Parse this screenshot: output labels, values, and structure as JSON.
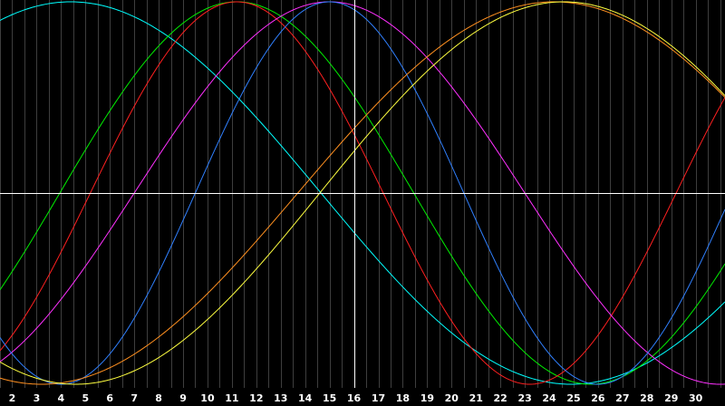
{
  "chart_data": {
    "type": "line",
    "title": "",
    "xlabel": "",
    "ylabel": "",
    "xlim": [
      1.5,
      31.2
    ],
    "ylim": [
      -1.0,
      1.0
    ],
    "x_ticks": [
      "2",
      "3",
      "4",
      "5",
      "6",
      "7",
      "8",
      "9",
      "10",
      "11",
      "12",
      "13",
      "14",
      "15",
      "16",
      "17",
      "18",
      "19",
      "20",
      "21",
      "22",
      "23",
      "24",
      "25",
      "26",
      "27",
      "28",
      "29",
      "30"
    ],
    "grid": "vertical",
    "crosshair": {
      "x": 16,
      "y": 0
    },
    "series": [
      {
        "color": "#00ffff",
        "peak_x": 4.4,
        "period": 41.0
      },
      {
        "color": "#00ee00",
        "peak_x": 11.2,
        "period": 29.0
      },
      {
        "color": "#ff2020",
        "peak_x": 11.2,
        "period": 24.0
      },
      {
        "color": "#ff30ff",
        "peak_x": 15.0,
        "period": 32.0
      },
      {
        "color": "#3080ff",
        "peak_x": 15.0,
        "period": 22.0
      },
      {
        "color": "#ff9020",
        "peak_x": 24.2,
        "period": 42.0
      },
      {
        "color": "#ffff40",
        "peak_x": 24.6,
        "period": 40.0
      }
    ]
  }
}
